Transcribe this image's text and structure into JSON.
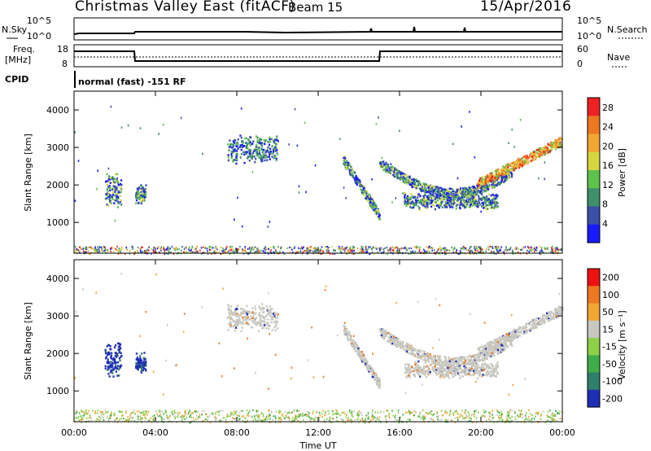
{
  "header": {
    "station": "Christmas Valley East (fitACF)",
    "beam": "Beam 15",
    "date": "15/Apr/2016"
  },
  "sky_panel": {
    "left_label": "N.Sky",
    "right_label": "N.Search",
    "left_ticks": [
      "10^5",
      "10^0"
    ],
    "right_ticks": [
      "10^5",
      "10^0"
    ]
  },
  "freq_panel": {
    "left_label_1": "Freq.",
    "left_label_2": "[MHz]",
    "right_label": "Nave",
    "left_ticks": [
      "18",
      "8"
    ],
    "right_ticks": [
      "60",
      "0"
    ]
  },
  "cpid": {
    "label": "CPID",
    "value": "normal (fast) -151 RF"
  },
  "chart_data": [
    {
      "type": "heatmap",
      "name": "power",
      "xlabel": "",
      "ylabel": "Slant Range [km]",
      "x_ticks": [
        "00:00",
        "04:00",
        "08:00",
        "12:00",
        "16:00",
        "20:00",
        "00:00"
      ],
      "y_ticks": [
        "1000",
        "2000",
        "3000",
        "4000"
      ],
      "xlim_hours": [
        0,
        24
      ],
      "ylim_km": [
        180,
        4500
      ],
      "colorbar_label": "Power [dB]",
      "colorbar_ticks": [
        "4",
        "8",
        "12",
        "16",
        "20",
        "24",
        "28"
      ],
      "colorbar_range": [
        0,
        30
      ],
      "colors": [
        "#1a1aff",
        "#3a4fa8",
        "#3f8f6a",
        "#5fc24a",
        "#d6d641",
        "#f2a531",
        "#ee7722",
        "#ee2222"
      ],
      "echo_regions": [
        {
          "t0": 1.5,
          "t1": 2.3,
          "r0": 1500,
          "r1": 2250,
          "level": "medium"
        },
        {
          "t0": 3.0,
          "t1": 3.5,
          "r0": 1620,
          "r1": 1920,
          "level": "medium"
        },
        {
          "t0": 7.5,
          "t1": 10.0,
          "r0": 2700,
          "r1": 3250,
          "level": "low"
        },
        {
          "t0": 13.2,
          "t1": 15.0,
          "r0": 1200,
          "r1": 2700,
          "level": "medium"
        },
        {
          "t0": 15.0,
          "t1": 21.5,
          "r0": 1800,
          "r1": 2600,
          "level": "medium"
        },
        {
          "t0": 16.2,
          "t1": 20.8,
          "r0": 1480,
          "r1": 1700,
          "level": "medium"
        },
        {
          "t0": 19.8,
          "t1": 24.0,
          "r0": 2050,
          "r1": 3200,
          "level": "high"
        }
      ]
    },
    {
      "type": "heatmap",
      "name": "velocity",
      "xlabel": "Time UT",
      "ylabel": "Slant Range [km]",
      "x_ticks": [
        "00:00",
        "04:00",
        "08:00",
        "12:00",
        "16:00",
        "20:00",
        "00:00"
      ],
      "y_ticks": [
        "1000",
        "2000",
        "3000",
        "4000"
      ],
      "xlim_hours": [
        0,
        24
      ],
      "ylim_km": [
        180,
        4500
      ],
      "colorbar_label": "Velocity [m s⁻¹]",
      "colorbar_ticks": [
        "200",
        "100",
        "50",
        "15",
        "-15",
        "-50",
        "-100",
        "-200"
      ],
      "colorbar_range": [
        -250,
        250
      ],
      "colors": [
        "#1e2fb5",
        "#2f7f6a",
        "#3fae4a",
        "#8fd04a",
        "#c8c8c0",
        "#f2a531",
        "#ee7722",
        "#ee1111"
      ],
      "echo_regions": [
        {
          "t0": 1.5,
          "t1": 2.3,
          "r0": 1500,
          "r1": 2250,
          "level": "toward"
        },
        {
          "t0": 3.0,
          "t1": 3.5,
          "r0": 1620,
          "r1": 1920,
          "level": "toward"
        },
        {
          "t0": 7.5,
          "t1": 10.0,
          "r0": 2700,
          "r1": 3250,
          "level": "zero"
        },
        {
          "t0": 13.2,
          "t1": 15.0,
          "r0": 1200,
          "r1": 2700,
          "level": "zero"
        },
        {
          "t0": 15.0,
          "t1": 21.5,
          "r0": 1800,
          "r1": 2600,
          "level": "zero"
        },
        {
          "t0": 16.2,
          "t1": 20.8,
          "r0": 1480,
          "r1": 1700,
          "level": "zero"
        },
        {
          "t0": 19.8,
          "t1": 24.0,
          "r0": 2050,
          "r1": 3200,
          "level": "zero"
        }
      ]
    }
  ]
}
